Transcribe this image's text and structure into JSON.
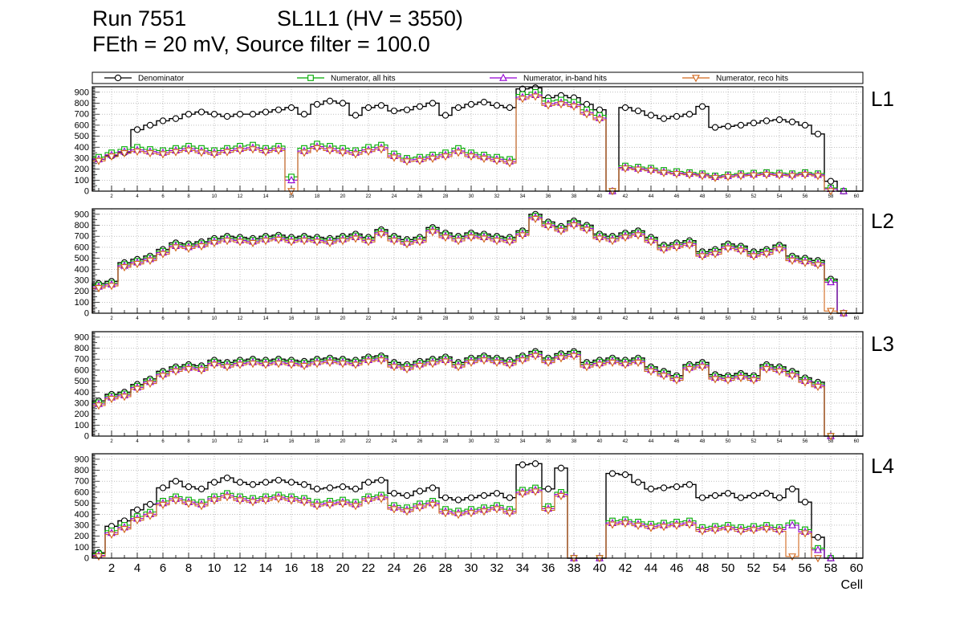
{
  "chart_data": {
    "type": "step-histogram",
    "title": {
      "run": "Run 7551",
      "chamber": "SL1L1 (HV = 3550)",
      "conditions": "FEth = 20 mV, Source filter = 100.0"
    },
    "axis": {
      "x_label": "Cell",
      "x_min": 1,
      "x_max": 60,
      "y_min": 0,
      "y_max": 950,
      "grid": true,
      "x_tick_labels": [
        2,
        4,
        6,
        8,
        10,
        12,
        14,
        16,
        18,
        20,
        22,
        24,
        26,
        28,
        30,
        32,
        34,
        36,
        38,
        40,
        42,
        44,
        46,
        48,
        50,
        52,
        54,
        56,
        58,
        60
      ],
      "y_tick_labels": [
        0,
        100,
        200,
        300,
        400,
        500,
        600,
        700,
        800,
        900
      ]
    },
    "series_meta": [
      {
        "key": "denominator",
        "label": "Denominator",
        "marker": "circle",
        "color": "#000000"
      },
      {
        "key": "num_all",
        "label": "Numerator, all hits",
        "marker": "square",
        "color": "#00aa00"
      },
      {
        "key": "num_inband",
        "label": "Numerator, in-band hits",
        "marker": "triangle-up",
        "color": "#9400d3"
      },
      {
        "key": "num_reco",
        "label": "Numerator, reco hits",
        "marker": "triangle-down",
        "color": "#d2691e"
      }
    ],
    "panels": [
      {
        "name": "L1",
        "series": {
          "denominator": [
            290,
            320,
            350,
            560,
            600,
            640,
            660,
            700,
            720,
            700,
            680,
            700,
            700,
            720,
            740,
            760,
            700,
            790,
            820,
            800,
            690,
            760,
            780,
            730,
            740,
            770,
            800,
            690,
            760,
            790,
            810,
            780,
            760,
            930,
            940,
            850,
            870,
            850,
            790,
            740,
            0,
            760,
            730,
            690,
            660,
            680,
            700,
            770,
            580,
            590,
            600,
            620,
            640,
            650,
            630,
            600,
            520,
            90,
            0,
            0
          ],
          "num_all": [
            310,
            350,
            380,
            400,
            380,
            370,
            390,
            410,
            390,
            370,
            390,
            410,
            420,
            390,
            410,
            130,
            390,
            430,
            410,
            390,
            370,
            400,
            420,
            340,
            300,
            310,
            330,
            350,
            390,
            350,
            330,
            310,
            290,
            880,
            900,
            820,
            830,
            810,
            740,
            690,
            0,
            230,
            220,
            210,
            190,
            180,
            170,
            160,
            140,
            150,
            160,
            165,
            170,
            165,
            160,
            170,
            160,
            30,
            0,
            0
          ],
          "num_inband": [
            290,
            330,
            360,
            375,
            360,
            350,
            370,
            385,
            365,
            350,
            370,
            385,
            395,
            370,
            385,
            100,
            365,
            405,
            385,
            365,
            350,
            375,
            395,
            320,
            285,
            290,
            310,
            330,
            365,
            330,
            310,
            290,
            270,
            855,
            875,
            795,
            805,
            785,
            715,
            665,
            0,
            215,
            205,
            195,
            175,
            165,
            158,
            148,
            130,
            138,
            148,
            152,
            158,
            152,
            148,
            158,
            148,
            20,
            0,
            0
          ],
          "num_reco": [
            275,
            315,
            345,
            360,
            345,
            335,
            355,
            370,
            350,
            335,
            355,
            370,
            380,
            355,
            370,
            0,
            350,
            390,
            370,
            350,
            335,
            360,
            380,
            305,
            270,
            275,
            295,
            315,
            350,
            315,
            295,
            275,
            255,
            840,
            860,
            780,
            790,
            770,
            700,
            650,
            0,
            205,
            195,
            185,
            165,
            155,
            148,
            138,
            120,
            128,
            138,
            142,
            148,
            142,
            138,
            148,
            138,
            0,
            0,
            0
          ]
        }
      },
      {
        "name": "L2",
        "series": {
          "denominator": [
            270,
            290,
            460,
            490,
            520,
            580,
            640,
            630,
            650,
            680,
            700,
            690,
            680,
            700,
            710,
            690,
            700,
            690,
            680,
            700,
            720,
            690,
            760,
            700,
            670,
            690,
            780,
            730,
            700,
            730,
            720,
            700,
            690,
            750,
            900,
            830,
            790,
            840,
            800,
            720,
            700,
            730,
            750,
            690,
            620,
            640,
            660,
            560,
            580,
            630,
            610,
            560,
            580,
            620,
            520,
            500,
            480,
            310,
            0,
            0
          ],
          "num_all": [
            255,
            275,
            445,
            475,
            505,
            565,
            625,
            615,
            635,
            665,
            685,
            675,
            665,
            685,
            695,
            675,
            685,
            675,
            665,
            685,
            705,
            675,
            745,
            685,
            655,
            675,
            765,
            715,
            685,
            715,
            705,
            685,
            675,
            735,
            885,
            815,
            775,
            825,
            785,
            705,
            685,
            715,
            735,
            675,
            605,
            625,
            645,
            545,
            565,
            615,
            595,
            545,
            565,
            605,
            505,
            485,
            465,
            295,
            0,
            0
          ],
          "num_inband": [
            242,
            262,
            432,
            462,
            492,
            552,
            612,
            602,
            622,
            652,
            672,
            662,
            652,
            672,
            682,
            662,
            672,
            662,
            652,
            672,
            692,
            662,
            732,
            672,
            642,
            662,
            752,
            702,
            672,
            702,
            692,
            672,
            662,
            722,
            872,
            802,
            762,
            812,
            772,
            692,
            672,
            702,
            722,
            662,
            592,
            612,
            632,
            532,
            552,
            602,
            582,
            532,
            552,
            592,
            492,
            472,
            452,
            282,
            0,
            0
          ],
          "num_reco": [
            228,
            248,
            418,
            448,
            478,
            538,
            598,
            588,
            608,
            638,
            658,
            648,
            638,
            658,
            668,
            648,
            658,
            648,
            638,
            658,
            678,
            648,
            718,
            658,
            628,
            648,
            738,
            688,
            658,
            688,
            678,
            658,
            648,
            708,
            858,
            788,
            748,
            798,
            758,
            678,
            658,
            688,
            708,
            648,
            578,
            598,
            618,
            518,
            538,
            588,
            568,
            518,
            538,
            578,
            478,
            458,
            438,
            20,
            0,
            0
          ]
        }
      },
      {
        "name": "L3",
        "series": {
          "denominator": [
            320,
            380,
            400,
            470,
            520,
            590,
            630,
            650,
            640,
            690,
            670,
            690,
            700,
            690,
            700,
            690,
            680,
            700,
            710,
            700,
            690,
            720,
            730,
            670,
            650,
            680,
            700,
            720,
            670,
            710,
            730,
            710,
            690,
            730,
            770,
            710,
            750,
            770,
            670,
            690,
            710,
            690,
            710,
            630,
            590,
            550,
            650,
            670,
            560,
            550,
            570,
            550,
            650,
            630,
            590,
            530,
            490,
            0,
            0,
            0
          ],
          "num_all": [
            305,
            365,
            385,
            455,
            505,
            575,
            615,
            635,
            625,
            675,
            655,
            675,
            685,
            675,
            685,
            675,
            665,
            685,
            695,
            685,
            675,
            705,
            715,
            655,
            635,
            665,
            685,
            705,
            655,
            695,
            715,
            695,
            675,
            715,
            755,
            695,
            735,
            755,
            655,
            675,
            695,
            675,
            695,
            615,
            575,
            535,
            635,
            655,
            545,
            535,
            555,
            535,
            635,
            615,
            575,
            515,
            475,
            0,
            0,
            0
          ],
          "num_inband": [
            292,
            352,
            372,
            442,
            492,
            562,
            602,
            622,
            612,
            662,
            642,
            662,
            672,
            662,
            672,
            662,
            652,
            672,
            682,
            672,
            662,
            692,
            702,
            642,
            622,
            652,
            672,
            692,
            642,
            682,
            702,
            682,
            662,
            702,
            742,
            682,
            722,
            742,
            642,
            662,
            682,
            662,
            682,
            602,
            562,
            522,
            622,
            642,
            532,
            522,
            542,
            522,
            622,
            602,
            562,
            502,
            462,
            0,
            0,
            0
          ],
          "num_reco": [
            278,
            338,
            358,
            428,
            478,
            548,
            588,
            608,
            598,
            648,
            628,
            648,
            658,
            648,
            658,
            648,
            638,
            658,
            668,
            658,
            648,
            678,
            688,
            628,
            608,
            638,
            658,
            678,
            628,
            668,
            688,
            668,
            648,
            688,
            728,
            668,
            708,
            728,
            628,
            648,
            668,
            648,
            668,
            588,
            548,
            508,
            608,
            628,
            518,
            508,
            528,
            508,
            608,
            588,
            548,
            488,
            448,
            0,
            0,
            0
          ]
        }
      },
      {
        "name": "L4",
        "series": {
          "denominator": [
            50,
            290,
            340,
            440,
            490,
            640,
            700,
            650,
            630,
            690,
            730,
            690,
            670,
            690,
            710,
            690,
            670,
            630,
            640,
            650,
            630,
            690,
            710,
            590,
            570,
            610,
            640,
            550,
            530,
            550,
            570,
            590,
            550,
            850,
            860,
            630,
            820,
            0,
            0,
            0,
            770,
            760,
            690,
            630,
            640,
            650,
            670,
            550,
            570,
            590,
            550,
            570,
            590,
            550,
            630,
            510,
            190,
            0,
            0,
            0
          ],
          "num_all": [
            40,
            250,
            300,
            380,
            420,
            520,
            560,
            530,
            510,
            560,
            590,
            560,
            545,
            560,
            575,
            560,
            545,
            510,
            520,
            530,
            510,
            560,
            575,
            480,
            460,
            495,
            520,
            445,
            430,
            445,
            460,
            480,
            445,
            620,
            640,
            470,
            600,
            0,
            0,
            0,
            340,
            350,
            330,
            310,
            320,
            330,
            340,
            280,
            290,
            300,
            280,
            290,
            300,
            280,
            320,
            260,
            90,
            0,
            0,
            0
          ],
          "num_inband": [
            25,
            230,
            280,
            360,
            400,
            500,
            540,
            510,
            490,
            540,
            570,
            540,
            525,
            540,
            555,
            540,
            525,
            490,
            500,
            510,
            490,
            540,
            555,
            460,
            440,
            475,
            500,
            425,
            410,
            425,
            440,
            460,
            425,
            600,
            620,
            450,
            580,
            0,
            0,
            0,
            320,
            330,
            310,
            290,
            300,
            310,
            320,
            260,
            270,
            280,
            260,
            270,
            280,
            260,
            300,
            240,
            75,
            0,
            0,
            0
          ],
          "num_reco": [
            15,
            215,
            265,
            345,
            385,
            485,
            525,
            495,
            475,
            525,
            555,
            525,
            510,
            525,
            540,
            525,
            510,
            475,
            485,
            495,
            475,
            525,
            540,
            445,
            425,
            460,
            485,
            410,
            395,
            410,
            425,
            445,
            410,
            585,
            605,
            435,
            565,
            0,
            0,
            0,
            305,
            315,
            295,
            275,
            285,
            295,
            305,
            245,
            255,
            265,
            245,
            255,
            265,
            245,
            15,
            225,
            0,
            0,
            0,
            0
          ]
        }
      }
    ]
  }
}
